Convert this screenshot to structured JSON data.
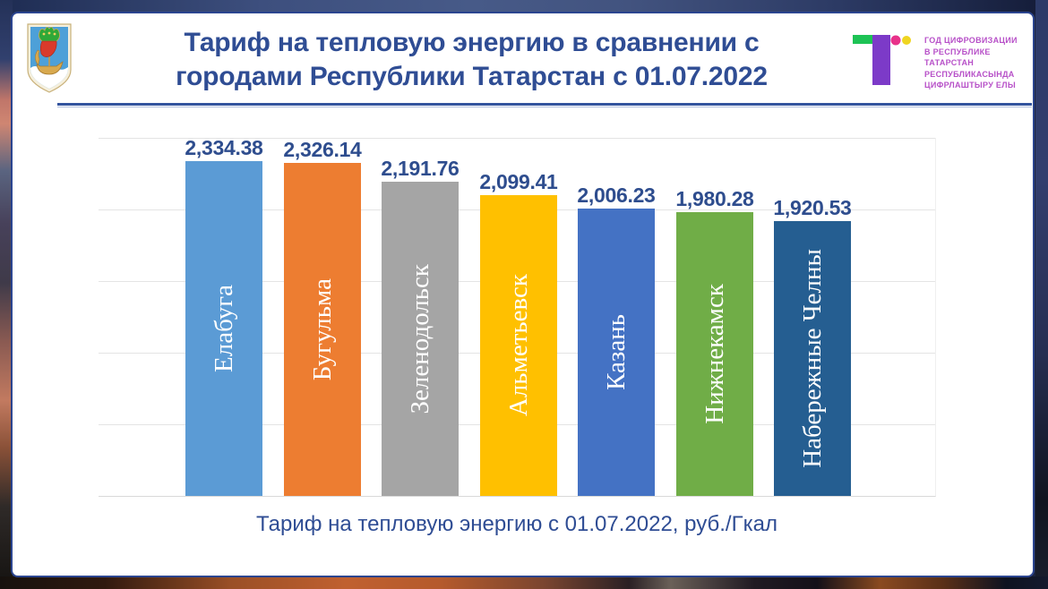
{
  "title": {
    "line1": "Тариф на тепловую энергию в сравнении с",
    "line2": "городами Республики Татарстан с 01.07.2022",
    "color": "#2F4D94"
  },
  "emblem": {
    "name": "Naberezhnye Chelny coat of arms"
  },
  "logo": {
    "text_lines": [
      "ГОД ЦИФРОВИЗАЦИИ",
      "В РЕСПУБЛИКЕ",
      "ТАТАРСТАН",
      "РЕСПУБЛИКАСЫНДА",
      "ЦИФРЛАШТЫРУ ЕЛЫ"
    ],
    "text_color": "#B750C8",
    "green": "#1DC355",
    "purple": "#7C3AC8",
    "magenta": "#E8318A",
    "yellow": "#EFD521"
  },
  "chart_data": {
    "type": "bar",
    "title": "Тариф на тепловую энергию в сравнении с городами Республики Татарстан с 01.07.2022",
    "categories": [
      "Елабуга",
      "Бугульма",
      "Зеленодольск",
      "Альметьевск",
      "Казань",
      "Нижнекамск",
      "Набережные Челны"
    ],
    "values": [
      2334.38,
      2326.14,
      2191.76,
      2099.41,
      2006.23,
      1980.28,
      1920.53
    ],
    "value_labels": [
      "2,334.38",
      "2,326.14",
      "2,191.76",
      "2,099.41",
      "2,006.23",
      "1,980.28",
      "1,920.53"
    ],
    "bar_colors": [
      "#5B9BD5",
      "#ED7D31",
      "#A5A5A5",
      "#FFC000",
      "#4472C4",
      "#70AD47",
      "#255E91"
    ],
    "xlabel": "Тариф на тепловую энергию с 01.07.2022, руб./Гкал",
    "ylim": [
      0,
      2500
    ],
    "grid_step": 500,
    "grid": true,
    "legend_position": "none",
    "value_label_color": "#2E4D8E",
    "category_label_color": "#FFFFFF"
  }
}
